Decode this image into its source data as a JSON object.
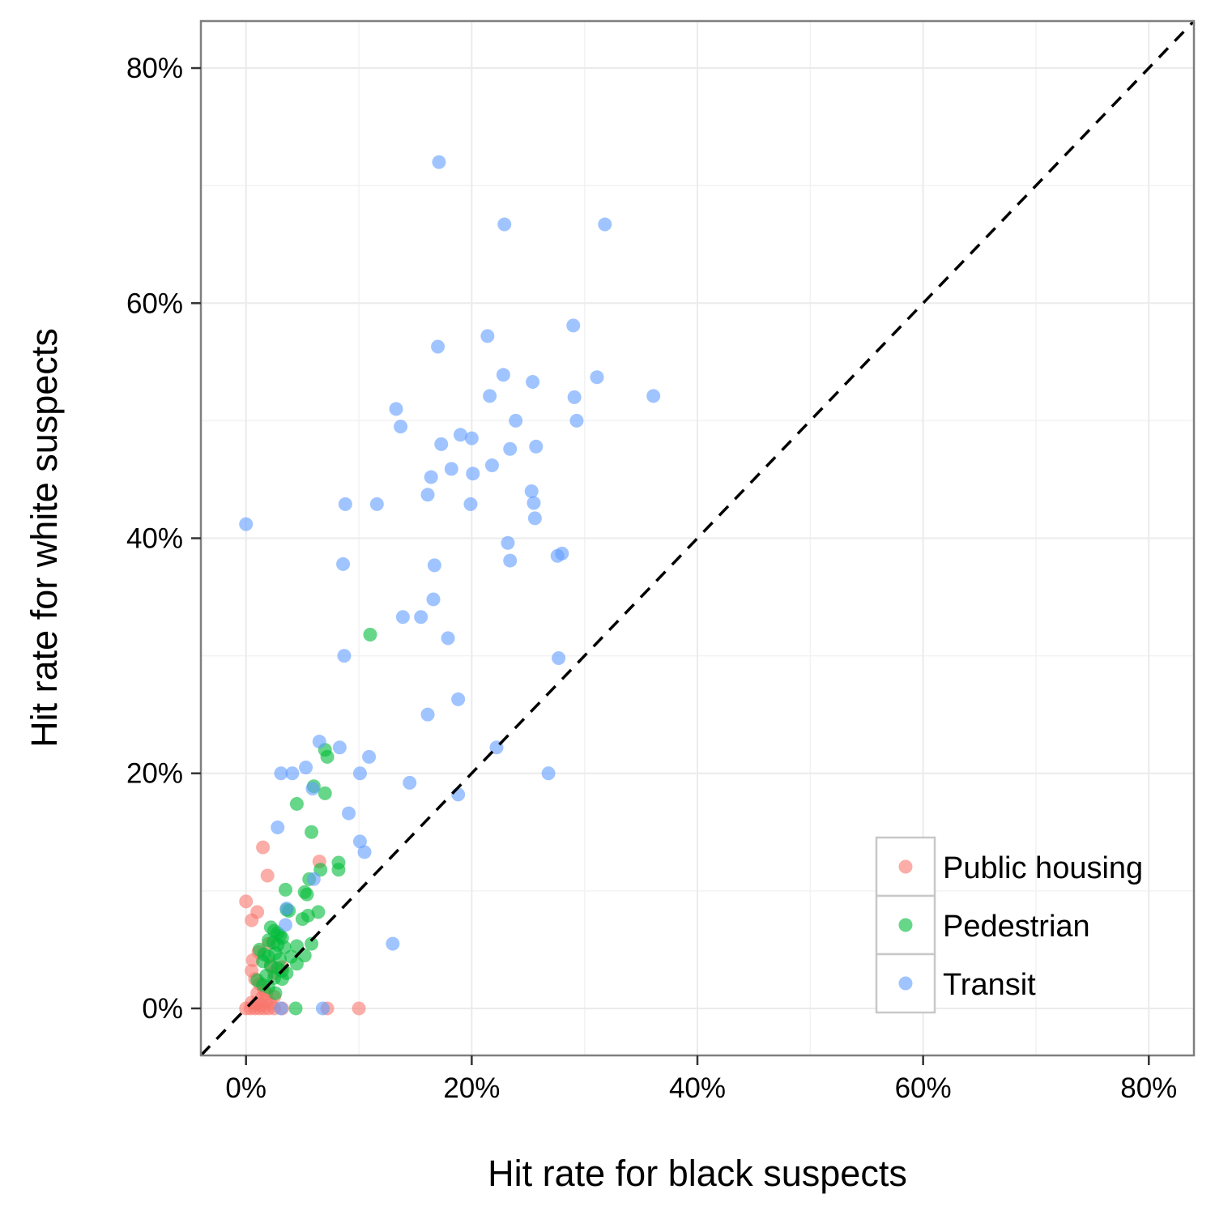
{
  "chart_data": {
    "type": "scatter",
    "xlabel": "Hit rate for black suspects",
    "ylabel": "Hit rate for white suspects",
    "xlim": [
      -0.04,
      0.84
    ],
    "ylim": [
      -0.04,
      0.84
    ],
    "x_ticks": [
      0,
      0.2,
      0.4,
      0.6,
      0.8
    ],
    "y_ticks": [
      0,
      0.2,
      0.4,
      0.6,
      0.8
    ],
    "x_tick_labels": [
      "0%",
      "20%",
      "40%",
      "60%",
      "80%"
    ],
    "y_tick_labels": [
      "0%",
      "20%",
      "40%",
      "60%",
      "80%"
    ],
    "grid": true,
    "reference_line": "y = x (dashed)",
    "legend_position": "bottom-right",
    "series": [
      {
        "name": "Public housing",
        "color": "#F8766D",
        "points": [
          [
            0.0,
            0.091
          ],
          [
            0.005,
            0.075
          ],
          [
            0.01,
            0.082
          ],
          [
            0.015,
            0.137
          ],
          [
            0.019,
            0.113
          ],
          [
            0.006,
            0.041
          ],
          [
            0.011,
            0.048
          ],
          [
            0.005,
            0.032
          ],
          [
            0.008,
            0.025
          ],
          [
            0.012,
            0.021
          ],
          [
            0.016,
            0.016
          ],
          [
            0.018,
            0.012
          ],
          [
            0.02,
            0.055
          ],
          [
            0.022,
            0.037
          ],
          [
            0.025,
            0.03
          ],
          [
            0.01,
            0.013
          ],
          [
            0.014,
            0.009
          ],
          [
            0.018,
            0.006
          ],
          [
            0.025,
            0.01
          ],
          [
            0.032,
            0.035
          ],
          [
            0.0,
            0.0
          ],
          [
            0.004,
            0.0
          ],
          [
            0.008,
            0.0
          ],
          [
            0.012,
            0.0
          ],
          [
            0.016,
            0.0
          ],
          [
            0.02,
            0.0
          ],
          [
            0.025,
            0.0
          ],
          [
            0.032,
            0.0
          ],
          [
            0.065,
            0.125
          ],
          [
            0.072,
            0.0
          ],
          [
            0.1,
            0.0
          ],
          [
            0.005,
            0.005
          ],
          [
            0.009,
            0.004
          ],
          [
            0.013,
            0.003
          ],
          [
            0.022,
            0.004
          ]
        ]
      },
      {
        "name": "Pedestrian",
        "color": "#00BA38",
        "points": [
          [
            0.11,
            0.318
          ],
          [
            0.07,
            0.22
          ],
          [
            0.072,
            0.214
          ],
          [
            0.06,
            0.189
          ],
          [
            0.07,
            0.183
          ],
          [
            0.045,
            0.174
          ],
          [
            0.058,
            0.15
          ],
          [
            0.082,
            0.124
          ],
          [
            0.082,
            0.118
          ],
          [
            0.066,
            0.118
          ],
          [
            0.056,
            0.11
          ],
          [
            0.035,
            0.101
          ],
          [
            0.052,
            0.099
          ],
          [
            0.054,
            0.097
          ],
          [
            0.036,
            0.084
          ],
          [
            0.038,
            0.083
          ],
          [
            0.064,
            0.082
          ],
          [
            0.055,
            0.079
          ],
          [
            0.05,
            0.076
          ],
          [
            0.022,
            0.069
          ],
          [
            0.025,
            0.066
          ],
          [
            0.028,
            0.064
          ],
          [
            0.03,
            0.062
          ],
          [
            0.032,
            0.06
          ],
          [
            0.02,
            0.058
          ],
          [
            0.024,
            0.056
          ],
          [
            0.028,
            0.054
          ],
          [
            0.034,
            0.052
          ],
          [
            0.045,
            0.053
          ],
          [
            0.058,
            0.055
          ],
          [
            0.012,
            0.05
          ],
          [
            0.016,
            0.046
          ],
          [
            0.02,
            0.044
          ],
          [
            0.026,
            0.047
          ],
          [
            0.03,
            0.042
          ],
          [
            0.04,
            0.044
          ],
          [
            0.052,
            0.045
          ],
          [
            0.015,
            0.04
          ],
          [
            0.022,
            0.036
          ],
          [
            0.028,
            0.034
          ],
          [
            0.032,
            0.032
          ],
          [
            0.036,
            0.03
          ],
          [
            0.045,
            0.038
          ],
          [
            0.018,
            0.028
          ],
          [
            0.025,
            0.026
          ],
          [
            0.032,
            0.025
          ],
          [
            0.01,
            0.024
          ],
          [
            0.015,
            0.02
          ],
          [
            0.02,
            0.018
          ],
          [
            0.026,
            0.013
          ],
          [
            0.044,
            0.0
          ]
        ]
      },
      {
        "name": "Transit",
        "color": "#619CFF",
        "points": [
          [
            0.171,
            0.72
          ],
          [
            0.229,
            0.667
          ],
          [
            0.318,
            0.667
          ],
          [
            0.214,
            0.572
          ],
          [
            0.29,
            0.581
          ],
          [
            0.17,
            0.563
          ],
          [
            0.228,
            0.539
          ],
          [
            0.254,
            0.533
          ],
          [
            0.311,
            0.537
          ],
          [
            0.216,
            0.521
          ],
          [
            0.291,
            0.52
          ],
          [
            0.361,
            0.521
          ],
          [
            0.133,
            0.51
          ],
          [
            0.137,
            0.495
          ],
          [
            0.239,
            0.5
          ],
          [
            0.293,
            0.5
          ],
          [
            0.19,
            0.488
          ],
          [
            0.2,
            0.485
          ],
          [
            0.173,
            0.48
          ],
          [
            0.234,
            0.476
          ],
          [
            0.257,
            0.478
          ],
          [
            0.218,
            0.462
          ],
          [
            0.182,
            0.459
          ],
          [
            0.164,
            0.452
          ],
          [
            0.201,
            0.455
          ],
          [
            0.161,
            0.437
          ],
          [
            0.253,
            0.44
          ],
          [
            0.255,
            0.43
          ],
          [
            0.088,
            0.429
          ],
          [
            0.116,
            0.429
          ],
          [
            0.199,
            0.429
          ],
          [
            0.256,
            0.417
          ],
          [
            0.0,
            0.412
          ],
          [
            0.232,
            0.396
          ],
          [
            0.234,
            0.381
          ],
          [
            0.276,
            0.385
          ],
          [
            0.28,
            0.387
          ],
          [
            0.086,
            0.378
          ],
          [
            0.167,
            0.377
          ],
          [
            0.166,
            0.348
          ],
          [
            0.139,
            0.333
          ],
          [
            0.155,
            0.333
          ],
          [
            0.179,
            0.315
          ],
          [
            0.087,
            0.3
          ],
          [
            0.277,
            0.298
          ],
          [
            0.188,
            0.263
          ],
          [
            0.161,
            0.25
          ],
          [
            0.065,
            0.227
          ],
          [
            0.083,
            0.222
          ],
          [
            0.222,
            0.222
          ],
          [
            0.109,
            0.214
          ],
          [
            0.053,
            0.205
          ],
          [
            0.031,
            0.2
          ],
          [
            0.041,
            0.2
          ],
          [
            0.101,
            0.2
          ],
          [
            0.268,
            0.2
          ],
          [
            0.145,
            0.192
          ],
          [
            0.059,
            0.187
          ],
          [
            0.188,
            0.182
          ],
          [
            0.091,
            0.166
          ],
          [
            0.028,
            0.154
          ],
          [
            0.101,
            0.142
          ],
          [
            0.105,
            0.133
          ],
          [
            0.06,
            0.11
          ],
          [
            0.036,
            0.085
          ],
          [
            0.035,
            0.071
          ],
          [
            0.13,
            0.055
          ],
          [
            0.031,
            0.0
          ],
          [
            0.068,
            0.0
          ]
        ]
      }
    ]
  },
  "legend": {
    "items": [
      {
        "label": "Public housing",
        "color": "#F8766D"
      },
      {
        "label": "Pedestrian",
        "color": "#00BA38"
      },
      {
        "label": "Transit",
        "color": "#619CFF"
      }
    ]
  }
}
